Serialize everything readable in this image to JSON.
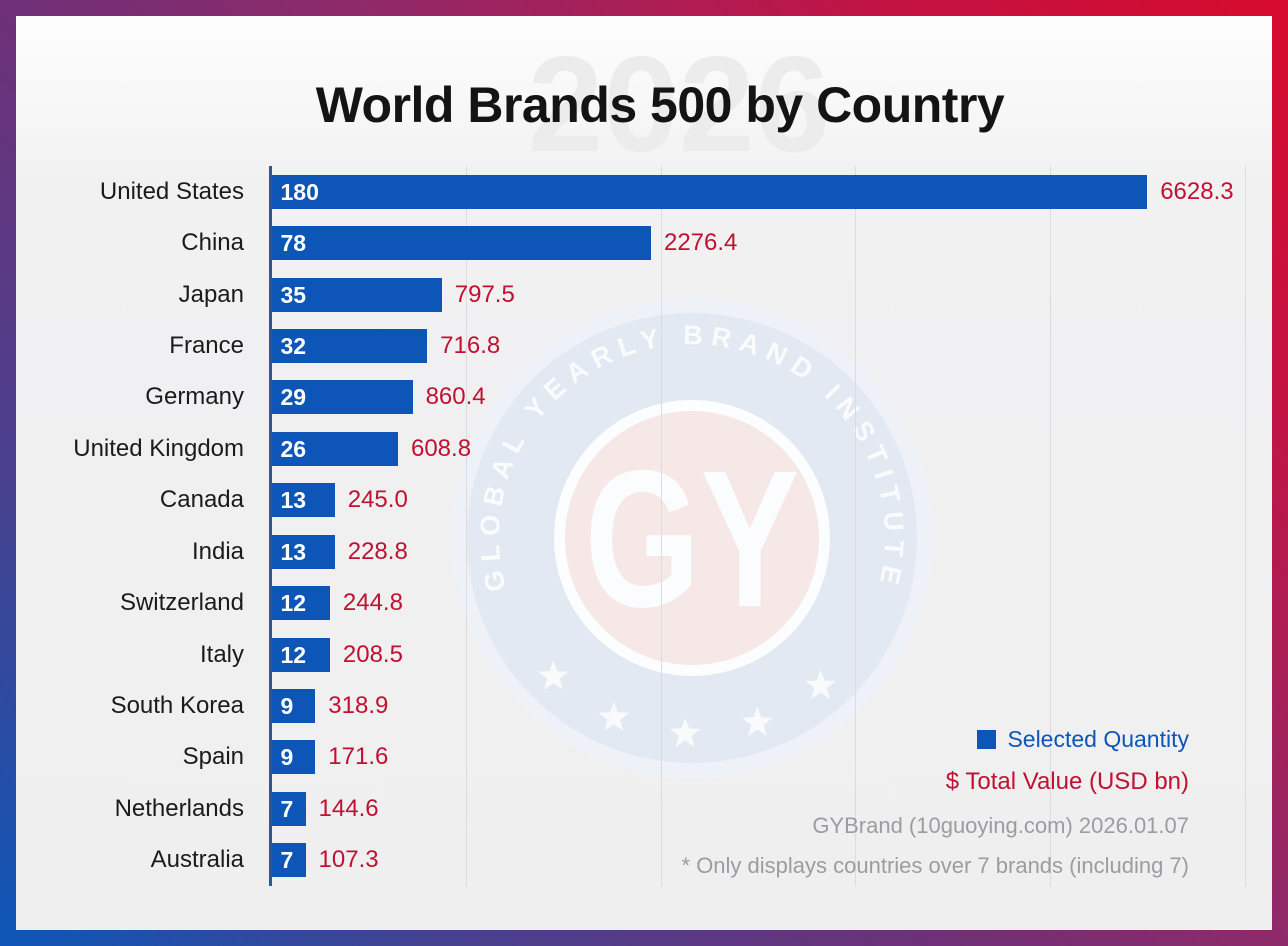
{
  "title": "World Brands 500 by Country",
  "watermark_year": "2026",
  "seal": {
    "arc_text": "GLOBAL YEARLY BRAND INSTITUTE",
    "monogram": "GY"
  },
  "legend": {
    "quantity_label": "Selected Quantity",
    "value_label": "$ Total Value (USD bn)"
  },
  "source": "GYBrand (10guoying.com) 2026.01.07",
  "footnote": "* Only displays countries over 7 brands (including 7)",
  "colors": {
    "bar_blue": "#0d56b8",
    "axis_blue": "#2a579d",
    "value_red": "#c01132",
    "legend_blue": "#0d56b8",
    "muted_gray": "#9c9ca1",
    "gridline_gray": "#dcdcde",
    "frame_gradient": [
      "#0d57b8",
      "#6e3078",
      "#d60a2c"
    ],
    "watermark_gray": "#ececec"
  },
  "chart_data": {
    "type": "bar",
    "orientation": "horizontal",
    "title": "World Brands 500 by Country",
    "categories": [
      "United States",
      "China",
      "Japan",
      "France",
      "Germany",
      "United Kingdom",
      "Canada",
      "India",
      "Switzerland",
      "Italy",
      "South Korea",
      "Spain",
      "Netherlands",
      "Australia"
    ],
    "series": [
      {
        "name": "Selected Quantity",
        "values": [
          180,
          78,
          35,
          32,
          29,
          26,
          13,
          13,
          12,
          12,
          9,
          9,
          7,
          7
        ]
      },
      {
        "name": "Total Value (USD bn)",
        "values": [
          6628.3,
          2276.4,
          797.5,
          716.8,
          860.4,
          608.8,
          245.0,
          228.8,
          244.8,
          208.5,
          318.9,
          171.6,
          144.6,
          107.3
        ]
      }
    ],
    "xlim": [
      0,
      200
    ],
    "grid": true,
    "gridline_values": [
      0,
      40,
      80,
      120,
      160,
      200
    ],
    "legend_position": "bottom-right",
    "value_labels": "outside-end",
    "quantity_labels": "inside-start"
  }
}
